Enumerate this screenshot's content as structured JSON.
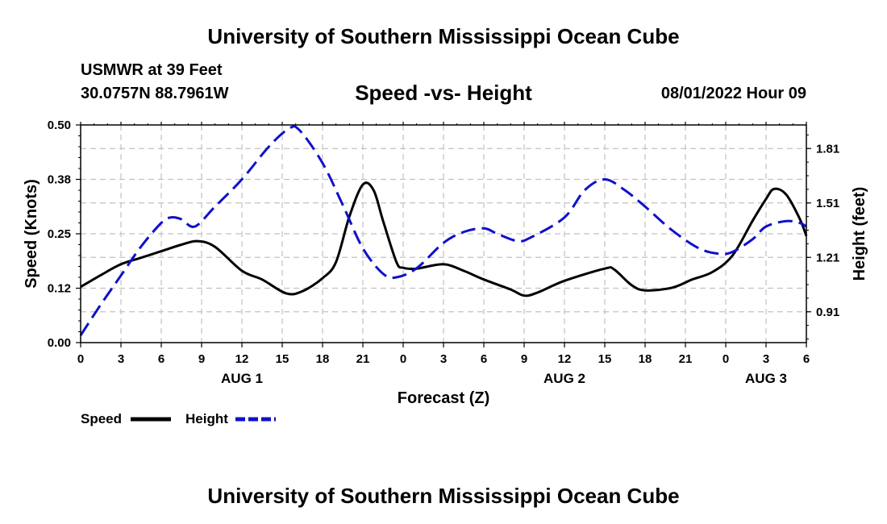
{
  "header": {
    "title": "University of Southern Mississippi Ocean Cube",
    "station": "USMWR at 39 Feet",
    "coords": "30.0757N  88.7961W",
    "subtitle": "Speed -vs- Height",
    "datetime": "08/01/2022 Hour 09"
  },
  "footer": {
    "title": "University of Southern Mississippi Ocean Cube"
  },
  "chart_data": {
    "type": "line",
    "title": "Speed -vs- Height",
    "xlabel": "Forecast (Z)",
    "ylabel": "Speed (Knots)",
    "y2label": "Height (feet)",
    "x": [
      0,
      3,
      6,
      9,
      12,
      15,
      18,
      21,
      24,
      27,
      30,
      33,
      36,
      39,
      42,
      45,
      48,
      51,
      54
    ],
    "x_tick_labels": [
      "0",
      "3",
      "6",
      "9",
      "12",
      "15",
      "18",
      "21",
      "0",
      "3",
      "6",
      "9",
      "12",
      "15",
      "18",
      "21",
      "0",
      "3",
      "6"
    ],
    "date_labels": [
      {
        "x": 12,
        "label": "AUG 1"
      },
      {
        "x": 36,
        "label": "AUG 2"
      },
      {
        "x": 51,
        "label": "AUG 3"
      }
    ],
    "xlim": [
      0,
      54
    ],
    "ylim": [
      0,
      0.5
    ],
    "y_ticks": [
      0,
      0.125,
      0.25,
      0.375,
      0.5
    ],
    "y_tick_labels": [
      "0.00",
      "0.12",
      "0.25",
      "0.38",
      "0.50"
    ],
    "y2lim": [
      0.74,
      1.94
    ],
    "y2_ticks": [
      0.91,
      1.21,
      1.51,
      1.81
    ],
    "y2_tick_labels": [
      "0.91",
      "1.21",
      "1.51",
      "1.81"
    ],
    "grid": true,
    "series": [
      {
        "name": "Speed",
        "axis": "left",
        "color": "#000000",
        "dash": "solid",
        "points": [
          [
            0,
            0.128
          ],
          [
            1.5,
            0.155
          ],
          [
            3,
            0.18
          ],
          [
            4.5,
            0.195
          ],
          [
            6,
            0.21
          ],
          [
            7.5,
            0.225
          ],
          [
            8.7,
            0.233
          ],
          [
            10,
            0.22
          ],
          [
            12,
            0.165
          ],
          [
            13.5,
            0.145
          ],
          [
            15.3,
            0.113
          ],
          [
            16.5,
            0.118
          ],
          [
            18,
            0.148
          ],
          [
            19,
            0.185
          ],
          [
            20,
            0.29
          ],
          [
            21,
            0.363
          ],
          [
            21.8,
            0.35
          ],
          [
            22.5,
            0.28
          ],
          [
            23.5,
            0.185
          ],
          [
            24,
            0.172
          ],
          [
            25,
            0.17
          ],
          [
            27,
            0.18
          ],
          [
            28.5,
            0.165
          ],
          [
            30,
            0.145
          ],
          [
            32,
            0.122
          ],
          [
            33,
            0.108
          ],
          [
            34,
            0.115
          ],
          [
            36,
            0.142
          ],
          [
            39,
            0.17
          ],
          [
            39.7,
            0.168
          ],
          [
            41,
            0.132
          ],
          [
            42,
            0.12
          ],
          [
            44,
            0.126
          ],
          [
            45.5,
            0.145
          ],
          [
            47,
            0.162
          ],
          [
            48.5,
            0.2
          ],
          [
            50,
            0.28
          ],
          [
            51,
            0.33
          ],
          [
            51.6,
            0.353
          ],
          [
            52.5,
            0.34
          ],
          [
            53.5,
            0.285
          ],
          [
            54,
            0.245
          ]
        ]
      },
      {
        "name": "Height",
        "axis": "right",
        "color": "#1010cc",
        "dash": "dashed",
        "points": [
          [
            0,
            0.78
          ],
          [
            1.5,
            0.95
          ],
          [
            3,
            1.11
          ],
          [
            4.5,
            1.27
          ],
          [
            6,
            1.4
          ],
          [
            6.7,
            1.43
          ],
          [
            7.5,
            1.42
          ],
          [
            8.5,
            1.38
          ],
          [
            10,
            1.49
          ],
          [
            12,
            1.64
          ],
          [
            14,
            1.82
          ],
          [
            15.5,
            1.92
          ],
          [
            16.3,
            1.91
          ],
          [
            18,
            1.73
          ],
          [
            19.5,
            1.5
          ],
          [
            21,
            1.26
          ],
          [
            22.5,
            1.12
          ],
          [
            23.5,
            1.1
          ],
          [
            25,
            1.15
          ],
          [
            27,
            1.29
          ],
          [
            28.5,
            1.35
          ],
          [
            30,
            1.37
          ],
          [
            31,
            1.34
          ],
          [
            32.5,
            1.3
          ],
          [
            33.5,
            1.32
          ],
          [
            36,
            1.43
          ],
          [
            37.5,
            1.58
          ],
          [
            39,
            1.64
          ],
          [
            40.5,
            1.58
          ],
          [
            42,
            1.49
          ],
          [
            44,
            1.36
          ],
          [
            46,
            1.26
          ],
          [
            47.5,
            1.23
          ],
          [
            48.5,
            1.24
          ],
          [
            50,
            1.31
          ],
          [
            51,
            1.38
          ],
          [
            52.5,
            1.41
          ],
          [
            53.5,
            1.4
          ],
          [
            54,
            1.38
          ]
        ]
      }
    ],
    "legend": {
      "position": "bottom-left",
      "entries": [
        "Speed",
        "Height"
      ]
    }
  }
}
